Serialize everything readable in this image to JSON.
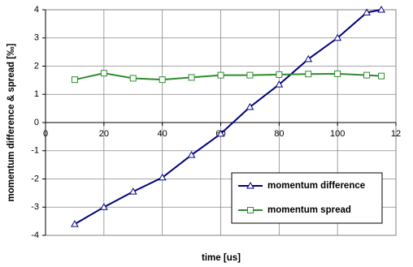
{
  "chart_data": {
    "type": "line",
    "x_label": "time [us]",
    "y_label": "momentum difference & spread [‰]",
    "x": [
      10,
      20,
      30,
      40,
      50,
      60,
      70,
      80,
      90,
      100,
      110,
      115
    ],
    "series": [
      {
        "name": "momentum difference",
        "color": "#000080",
        "marker": "triangle",
        "values": [
          -3.6,
          -3.0,
          -2.45,
          -1.95,
          -1.15,
          -0.4,
          0.55,
          1.35,
          2.25,
          3.0,
          3.9,
          4.0
        ]
      },
      {
        "name": "momentum spread",
        "color": "#2e8b2e",
        "marker": "square",
        "values": [
          1.52,
          1.75,
          1.57,
          1.52,
          1.6,
          1.68,
          1.68,
          1.7,
          1.72,
          1.73,
          1.68,
          1.65
        ]
      }
    ],
    "xlim": [
      0,
      120
    ],
    "xticks": [
      0,
      20,
      40,
      60,
      80,
      100,
      {
        "value": 120,
        "label": "12"
      }
    ],
    "ylim": [
      -4,
      4
    ],
    "yticks": [
      -4,
      -3,
      -2,
      -1,
      0,
      1,
      2,
      3,
      4
    ],
    "grid": true
  }
}
